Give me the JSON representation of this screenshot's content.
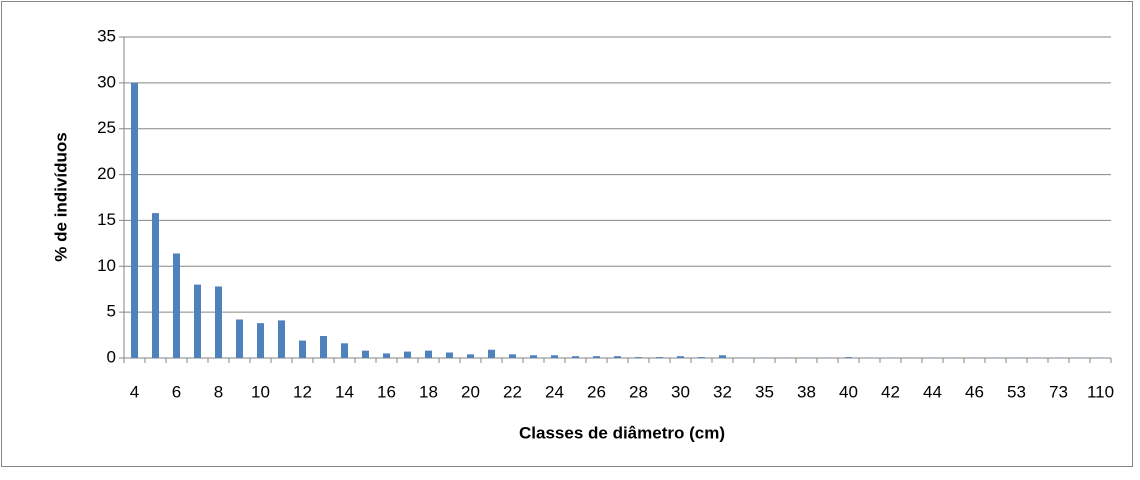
{
  "chart_data": {
    "type": "bar",
    "y_label": "% de indivíduos",
    "x_label": "Classes de diâmetro (cm)",
    "categories": [
      "4",
      null,
      "6",
      null,
      "8",
      null,
      "10",
      null,
      "12",
      null,
      "14",
      null,
      "16",
      null,
      "18",
      null,
      "20",
      null,
      "22",
      null,
      "24",
      null,
      "26",
      null,
      "28",
      null,
      "30",
      null,
      "32",
      null,
      "35",
      null,
      "38",
      null,
      "40",
      null,
      "42",
      null,
      "44",
      null,
      "46",
      null,
      "53",
      null,
      "73",
      null,
      "110"
    ],
    "values": [
      30,
      15.8,
      11.4,
      8.0,
      7.8,
      4.2,
      3.8,
      4.1,
      1.9,
      2.4,
      1.6,
      0.8,
      0.5,
      0.7,
      0.8,
      0.6,
      0.4,
      0.9,
      0.4,
      0.3,
      0.3,
      0.2,
      0.2,
      0.2,
      0.1,
      0.1,
      0.2,
      0.1,
      0.3,
      0.05,
      0.05,
      0.05,
      0.05,
      0.05,
      0.1,
      0.05,
      0.05,
      0.05,
      0.05,
      0.05,
      0.05,
      0.05,
      0.05,
      0.05,
      0.05,
      0.05,
      0.05
    ],
    "color": "#4f81bd",
    "ylim": [
      0,
      35
    ],
    "yticks": [
      0,
      5,
      10,
      15,
      20,
      25,
      30,
      35
    ],
    "grid": true
  }
}
